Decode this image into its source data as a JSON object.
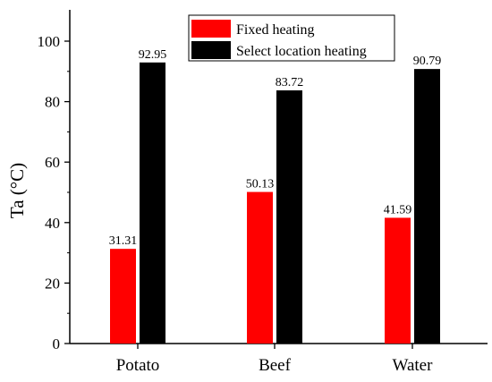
{
  "chart_data": {
    "type": "bar",
    "title": "",
    "xlabel": "",
    "ylabel": "Ta (°C)",
    "ylim": [
      0,
      110
    ],
    "yticks": [
      0,
      20,
      40,
      60,
      80,
      100
    ],
    "categories": [
      "Potato",
      "Beef",
      "Water"
    ],
    "series": [
      {
        "name": "Fixed heating",
        "color": "#ff0000",
        "values": [
          31.31,
          50.13,
          41.59
        ]
      },
      {
        "name": "Select location heating",
        "color": "#000000",
        "values": [
          92.95,
          83.72,
          90.79
        ]
      }
    ],
    "value_labels": [
      [
        "31.31",
        "50.13",
        "41.59"
      ],
      [
        "92.95",
        "83.72",
        "90.79"
      ]
    ],
    "legend": "top-right",
    "grid": false
  }
}
